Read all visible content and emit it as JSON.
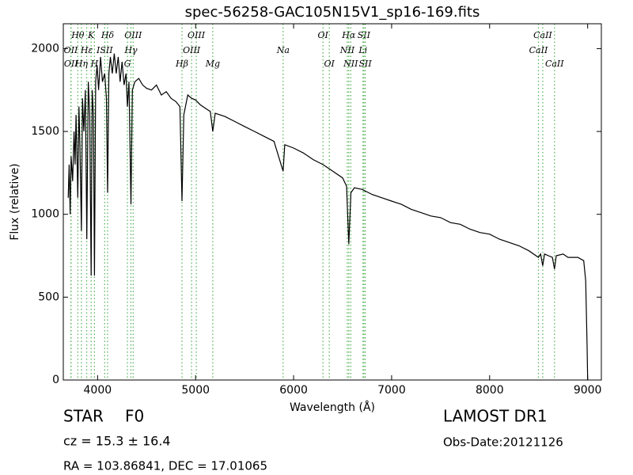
{
  "chart_data": {
    "type": "line",
    "title": "spec-56258-GAC105N15V1_sp16-169.fits",
    "x_label": "Wavelength (Å)",
    "y_label": "Flux (relative)",
    "color": "#000000",
    "line_color": "#4caf50",
    "xlim": [
      3650,
      9140
    ],
    "ylim": [
      0,
      2150
    ],
    "xticks": [
      4000,
      5000,
      6000,
      7000,
      8000,
      9000
    ],
    "yticks": [
      0,
      500,
      1000,
      1500,
      2000
    ],
    "grid": false,
    "x": [
      3700,
      3710,
      3720,
      3730,
      3745,
      3760,
      3770,
      3780,
      3790,
      3798,
      3810,
      3820,
      3835,
      3845,
      3860,
      3875,
      3890,
      3905,
      3920,
      3934,
      3945,
      3958,
      3968,
      3980,
      3995,
      4010,
      4030,
      4050,
      4072,
      4090,
      4102,
      4115,
      4130,
      4150,
      4170,
      4190,
      4210,
      4230,
      4250,
      4270,
      4290,
      4304,
      4320,
      4340,
      4355,
      4380,
      4420,
      4460,
      4500,
      4550,
      4600,
      4650,
      4700,
      4750,
      4800,
      4840,
      4861,
      4880,
      4920,
      4960,
      5000,
      5050,
      5100,
      5150,
      5175,
      5200,
      5300,
      5400,
      5500,
      5600,
      5700,
      5800,
      5893,
      5910,
      6000,
      6100,
      6200,
      6300,
      6400,
      6500,
      6540,
      6563,
      6585,
      6620,
      6700,
      6800,
      6900,
      7000,
      7100,
      7200,
      7300,
      7400,
      7500,
      7600,
      7700,
      7800,
      7900,
      8000,
      8100,
      8200,
      8300,
      8400,
      8498,
      8520,
      8542,
      8560,
      8600,
      8640,
      8662,
      8680,
      8750,
      8800,
      8900,
      8960,
      8980,
      8995,
      9000
    ],
    "values": [
      1100,
      1300,
      1000,
      1350,
      1200,
      1500,
      1300,
      1600,
      1350,
      1100,
      1650,
      1400,
      900,
      1700,
      1500,
      1750,
      850,
      1800,
      1600,
      630,
      1750,
      1600,
      630,
      1800,
      1900,
      1750,
      1950,
      1800,
      1850,
      1700,
      1130,
      1850,
      1950,
      1850,
      1970,
      1850,
      1950,
      1800,
      1920,
      1780,
      1850,
      1650,
      1800,
      1060,
      1750,
      1800,
      1820,
      1780,
      1760,
      1750,
      1780,
      1720,
      1740,
      1700,
      1680,
      1650,
      1080,
      1600,
      1720,
      1700,
      1690,
      1660,
      1640,
      1620,
      1500,
      1610,
      1590,
      1560,
      1530,
      1500,
      1470,
      1440,
      1260,
      1420,
      1400,
      1370,
      1330,
      1300,
      1260,
      1220,
      1170,
      820,
      1130,
      1160,
      1150,
      1120,
      1100,
      1080,
      1060,
      1030,
      1010,
      990,
      980,
      950,
      940,
      910,
      890,
      880,
      850,
      830,
      810,
      780,
      740,
      760,
      690,
      760,
      750,
      740,
      670,
      750,
      760,
      740,
      740,
      720,
      600,
      200,
      0
    ],
    "spectral_lines": [
      {
        "label": "Hθ",
        "wavelength": 3798
      },
      {
        "label": "K",
        "wavelength": 3934
      },
      {
        "label": "Hδ",
        "wavelength": 4102
      },
      {
        "label": "OIII",
        "wavelength": 4363
      },
      {
        "label": "OIII",
        "wavelength": 5007
      },
      {
        "label": "OI",
        "wavelength": 6300
      },
      {
        "label": "Hα",
        "wavelength": 6563
      },
      {
        "label": "SII",
        "wavelength": 6717
      },
      {
        "label": "CaII",
        "wavelength": 8542
      },
      {
        "label": "OII",
        "wavelength": 3727
      },
      {
        "label": "Hε",
        "wavelength": 3889
      },
      {
        "label": "ISII",
        "wavelength": 4072
      },
      {
        "label": "Hγ",
        "wavelength": 4340
      },
      {
        "label": "OIII",
        "wavelength": 4959
      },
      {
        "label": "Na",
        "wavelength": 5893
      },
      {
        "label": "NII",
        "wavelength": 6548
      },
      {
        "label": "Li",
        "wavelength": 6708
      },
      {
        "label": "CaII",
        "wavelength": 8498
      },
      {
        "label": "OII",
        "wavelength": 3729
      },
      {
        "label": "Hη",
        "wavelength": 3835
      },
      {
        "label": "H",
        "wavelength": 3968
      },
      {
        "label": "G",
        "wavelength": 4304
      },
      {
        "label": "Hβ",
        "wavelength": 4861
      },
      {
        "label": "Mg",
        "wavelength": 5175
      },
      {
        "label": "OI",
        "wavelength": 6364
      },
      {
        "label": "NII",
        "wavelength": 6583
      },
      {
        "label": "SII",
        "wavelength": 6731
      },
      {
        "label": "CaII",
        "wavelength": 8662
      }
    ],
    "class": "STAR",
    "subclass": "F0",
    "redshift_text": "cz = 15.3 ± 16.4",
    "coords_text": "RA = 103.86841, DEC = 17.01065",
    "survey": "LAMOST DR1",
    "obs_date": "Obs-Date:20121126"
  }
}
